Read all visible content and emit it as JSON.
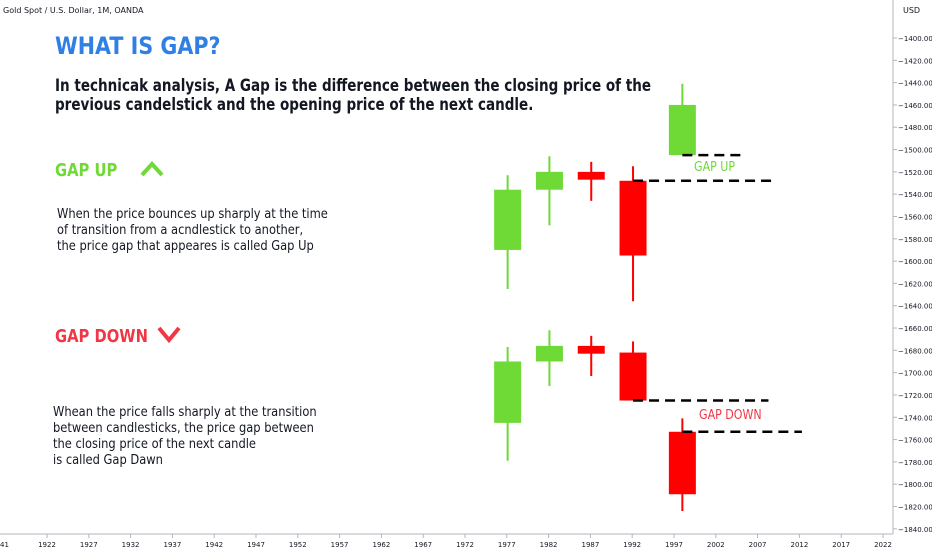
{
  "header": {
    "symbol": "Gold Spot / U.S. Dollar, 1M, OANDA",
    "currency": "USD"
  },
  "title": "WHAT IS GAP?",
  "intro_lines": [
    "In technicak analysis, A Gap is the difference between the closing price of the",
    "previous candelstick and the opening price of the next candle."
  ],
  "gap_up": {
    "label": "GAP UP",
    "color": "#6fd935",
    "desc_lines": [
      "When the price bounces up sharply at the time",
      "of transition from a acndlestick to another,",
      "the price gap that appeares is called Gap Up"
    ],
    "chart_label": "GAP UP"
  },
  "gap_down": {
    "label": "GAP DOWN",
    "color": "#f23645",
    "desc_lines": [
      "Whean the price falls sharply at the transition",
      "between candlesticks, the price gap between",
      "the closing price of the next candle",
      "is called Gap Dawn"
    ],
    "chart_label": "GAP DOWN"
  },
  "chart_data": {
    "type": "candlestick",
    "y_axis": {
      "range": [
        -1850,
        -1380
      ],
      "ticks": [
        -1400,
        -1420,
        -1440,
        -1460,
        -1480,
        -1500,
        -1520,
        -1540,
        -1560,
        -1580,
        -1600,
        -1620,
        -1640,
        -1660,
        -1680,
        -1700,
        -1720,
        -1740,
        -1760,
        -1780,
        -1800,
        -1820,
        -1840
      ],
      "tick_labels": [
        "−1400.000",
        "−1420.000",
        "−1440.000",
        "−1460.000",
        "−1480.000",
        "−1500.000",
        "−1520.000",
        "−1540.000",
        "−1560.000",
        "−1580.000",
        "−1600.000",
        "−1620.000",
        "−1640.000",
        "−1660.000",
        "−1680.000",
        "−1700.000",
        "−1720.000",
        "−1740.000",
        "−1760.000",
        "−1780.000",
        "−1800.000",
        "−1820.000",
        "−1840.000"
      ]
    },
    "x_axis": {
      "ticks": [
        1922,
        1927,
        1932,
        1937,
        1942,
        1947,
        1952,
        1957,
        1962,
        1967,
        1972,
        1977,
        1982,
        1987,
        1992,
        1997,
        2002,
        2007,
        2012,
        2017,
        2022
      ],
      "tick_labels": [
        "1922",
        "1927",
        "1932",
        "1937",
        "1942",
        "1947",
        "1952",
        "1957",
        "1962",
        "1967",
        "1972",
        "1977",
        "1982",
        "1987",
        "1992",
        "1997",
        "2002",
        "2007",
        "2012",
        "2017",
        "2022"
      ],
      "left_edge_label": "41"
    },
    "up_color": "#6fd935",
    "down_color": "#ff0000",
    "candles": [
      {
        "x": 1977.1,
        "open": -1590,
        "close": -1536,
        "high": -1523,
        "low": -1625
      },
      {
        "x": 1982.1,
        "open": -1536,
        "close": -1520,
        "high": -1506,
        "low": -1568
      },
      {
        "x": 1987.1,
        "open": -1520,
        "close": -1527,
        "high": -1511,
        "low": -1546
      },
      {
        "x": 1992.1,
        "open": -1528,
        "close": -1595,
        "high": -1515,
        "low": -1636
      },
      {
        "x": 1998.0,
        "open": -1505,
        "close": -1460,
        "high": -1441,
        "low": -1505
      },
      {
        "x": 1977.1,
        "open": -1745,
        "close": -1690,
        "high": -1677,
        "low": -1779
      },
      {
        "x": 1982.1,
        "open": -1690,
        "close": -1676,
        "high": -1662,
        "low": -1712
      },
      {
        "x": 1987.1,
        "open": -1676,
        "close": -1683,
        "high": -1667,
        "low": -1703
      },
      {
        "x": 1992.1,
        "open": -1682,
        "close": -1725,
        "high": -1672,
        "low": -1725
      },
      {
        "x": 1998.0,
        "open": -1753,
        "close": -1809,
        "high": -1741,
        "low": -1824
      }
    ],
    "gap_lines": [
      {
        "x_start": 1998.0,
        "x_end": 2005.2,
        "y": -1505
      },
      {
        "x_start": 1992.1,
        "x_end": 2008.7,
        "y": -1528
      },
      {
        "x_start": 1992.1,
        "x_end": 2008.3,
        "y": -1725
      },
      {
        "x_start": 1998.0,
        "x_end": 2012.3,
        "y": -1753
      }
    ]
  }
}
